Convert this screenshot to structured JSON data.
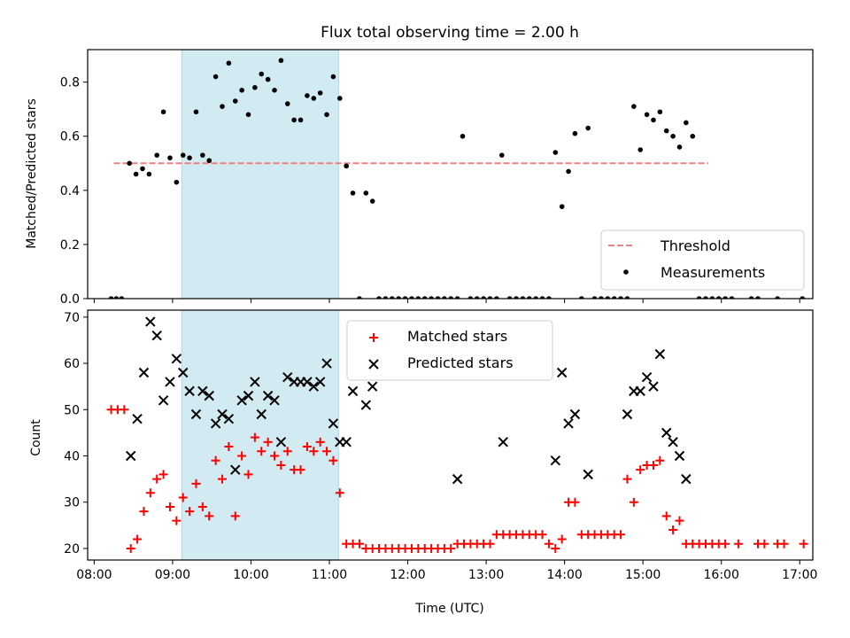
{
  "chart_data": [
    {
      "type": "scatter",
      "title": "Flux total observing time = 2.00 h",
      "xlabel": "",
      "ylabel": "Matched/Predicted stars",
      "x_unit": "time of day (UTC)",
      "xlim": [
        "07:55",
        "17:10"
      ],
      "ylim": [
        0,
        0.92
      ],
      "yticks": [
        "0.0",
        "0.2",
        "0.4",
        "0.6",
        "0.8"
      ],
      "shaded_interval": {
        "x": [
          "09:07",
          "11:07"
        ],
        "color": "#add8e6"
      },
      "legend": {
        "position": "lower right",
        "entries": [
          "Threshold",
          "Measurements"
        ]
      },
      "threshold": {
        "name": "Threshold",
        "y": 0.5,
        "x": [
          "08:15",
          "15:50"
        ],
        "color": "#f08080"
      },
      "series": [
        {
          "name": "Measurements",
          "color": "#000000",
          "points": [
            [
              "08:13",
              0
            ],
            [
              "08:17",
              0
            ],
            [
              "08:21",
              0
            ],
            [
              "08:27",
              0.5
            ],
            [
              "08:32",
              0.46
            ],
            [
              "08:37",
              0.48
            ],
            [
              "08:42",
              0.46
            ],
            [
              "08:48",
              0.53
            ],
            [
              "08:53",
              0.69
            ],
            [
              "08:58",
              0.52
            ],
            [
              "09:03",
              0.43
            ],
            [
              "09:08",
              0.53
            ],
            [
              "09:13",
              0.52
            ],
            [
              "09:18",
              0.69
            ],
            [
              "09:23",
              0.53
            ],
            [
              "09:28",
              0.51
            ],
            [
              "09:33",
              0.82
            ],
            [
              "09:38",
              0.71
            ],
            [
              "09:43",
              0.87
            ],
            [
              "09:48",
              0.73
            ],
            [
              "09:53",
              0.77
            ],
            [
              "09:58",
              0.68
            ],
            [
              "10:03",
              0.78
            ],
            [
              "10:08",
              0.83
            ],
            [
              "10:13",
              0.81
            ],
            [
              "10:18",
              0.77
            ],
            [
              "10:23",
              0.88
            ],
            [
              "10:28",
              0.72
            ],
            [
              "10:33",
              0.66
            ],
            [
              "10:38",
              0.66
            ],
            [
              "10:43",
              0.75
            ],
            [
              "10:48",
              0.74
            ],
            [
              "10:53",
              0.76
            ],
            [
              "10:58",
              0.68
            ],
            [
              "11:03",
              0.82
            ],
            [
              "11:08",
              0.74
            ],
            [
              "11:13",
              0.49
            ],
            [
              "11:18",
              0.39
            ],
            [
              "11:23",
              0
            ],
            [
              "11:28",
              0.39
            ],
            [
              "11:33",
              0.36
            ],
            [
              "11:38",
              0
            ],
            [
              "11:43",
              0
            ],
            [
              "11:48",
              0
            ],
            [
              "11:53",
              0
            ],
            [
              "11:58",
              0
            ],
            [
              "12:03",
              0
            ],
            [
              "12:08",
              0
            ],
            [
              "12:13",
              0
            ],
            [
              "12:18",
              0
            ],
            [
              "12:23",
              0
            ],
            [
              "12:28",
              0
            ],
            [
              "12:33",
              0
            ],
            [
              "12:38",
              0
            ],
            [
              "12:42",
              0.6
            ],
            [
              "12:48",
              0
            ],
            [
              "12:53",
              0
            ],
            [
              "12:58",
              0
            ],
            [
              "13:03",
              0
            ],
            [
              "13:08",
              0
            ],
            [
              "13:12",
              0.53
            ],
            [
              "13:18",
              0
            ],
            [
              "13:23",
              0
            ],
            [
              "13:28",
              0
            ],
            [
              "13:33",
              0
            ],
            [
              "13:38",
              0
            ],
            [
              "13:43",
              0
            ],
            [
              "13:48",
              0
            ],
            [
              "13:53",
              0.54
            ],
            [
              "13:58",
              0.34
            ],
            [
              "14:03",
              0.47
            ],
            [
              "14:08",
              0.61
            ],
            [
              "14:13",
              0
            ],
            [
              "14:18",
              0.63
            ],
            [
              "14:23",
              0
            ],
            [
              "14:28",
              0
            ],
            [
              "14:33",
              0
            ],
            [
              "14:38",
              0
            ],
            [
              "14:43",
              0
            ],
            [
              "14:48",
              0
            ],
            [
              "14:53",
              0.71
            ],
            [
              "14:58",
              0.55
            ],
            [
              "15:03",
              0.68
            ],
            [
              "15:08",
              0.66
            ],
            [
              "15:13",
              0.69
            ],
            [
              "15:18",
              0.62
            ],
            [
              "15:23",
              0.6
            ],
            [
              "15:28",
              0.56
            ],
            [
              "15:33",
              0.65
            ],
            [
              "15:38",
              0.6
            ],
            [
              "15:43",
              0
            ],
            [
              "15:48",
              0
            ],
            [
              "15:53",
              0
            ],
            [
              "15:58",
              0
            ],
            [
              "16:03",
              0
            ],
            [
              "16:08",
              0
            ],
            [
              "16:23",
              0
            ],
            [
              "16:28",
              0
            ],
            [
              "16:43",
              0
            ],
            [
              "17:02",
              0
            ]
          ]
        }
      ]
    },
    {
      "type": "scatter",
      "title": "",
      "xlabel": "Time (UTC)",
      "ylabel": "Count",
      "x_unit": "time of day (UTC)",
      "xlim": [
        "07:55",
        "17:10"
      ],
      "ylim": [
        17.5,
        71.5
      ],
      "yticks": [
        "20",
        "30",
        "40",
        "50",
        "60",
        "70"
      ],
      "xticks": [
        "08:00",
        "09:00",
        "10:00",
        "11:00",
        "12:00",
        "13:00",
        "14:00",
        "15:00",
        "16:00",
        "17:00"
      ],
      "shaded_interval": {
        "x": [
          "09:07",
          "11:07"
        ],
        "color": "#add8e6"
      },
      "legend": {
        "position": "upper center",
        "entries": [
          "Matched stars",
          "Predicted stars"
        ]
      },
      "series": [
        {
          "name": "Matched stars",
          "marker": "+",
          "color": "#ff0000",
          "points": [
            [
              "08:13",
              50
            ],
            [
              "08:18",
              50
            ],
            [
              "08:23",
              50
            ],
            [
              "08:28",
              20
            ],
            [
              "08:33",
              22
            ],
            [
              "08:38",
              28
            ],
            [
              "08:43",
              32
            ],
            [
              "08:48",
              35
            ],
            [
              "08:53",
              36
            ],
            [
              "08:58",
              29
            ],
            [
              "09:03",
              26
            ],
            [
              "09:08",
              31
            ],
            [
              "09:13",
              28
            ],
            [
              "09:18",
              34
            ],
            [
              "09:23",
              29
            ],
            [
              "09:28",
              27
            ],
            [
              "09:33",
              39
            ],
            [
              "09:38",
              35
            ],
            [
              "09:43",
              42
            ],
            [
              "09:48",
              27
            ],
            [
              "09:53",
              40
            ],
            [
              "09:58",
              36
            ],
            [
              "10:03",
              44
            ],
            [
              "10:08",
              41
            ],
            [
              "10:13",
              43
            ],
            [
              "10:18",
              40
            ],
            [
              "10:23",
              38
            ],
            [
              "10:28",
              41
            ],
            [
              "10:33",
              37
            ],
            [
              "10:38",
              37
            ],
            [
              "10:43",
              42
            ],
            [
              "10:48",
              41
            ],
            [
              "10:53",
              43
            ],
            [
              "10:58",
              41
            ],
            [
              "11:03",
              39
            ],
            [
              "11:08",
              32
            ],
            [
              "11:13",
              21
            ],
            [
              "11:18",
              21
            ],
            [
              "11:23",
              21
            ],
            [
              "11:28",
              20
            ],
            [
              "11:33",
              20
            ],
            [
              "11:38",
              20
            ],
            [
              "11:43",
              20
            ],
            [
              "11:48",
              20
            ],
            [
              "11:53",
              20
            ],
            [
              "11:58",
              20
            ],
            [
              "12:03",
              20
            ],
            [
              "12:08",
              20
            ],
            [
              "12:13",
              20
            ],
            [
              "12:18",
              20
            ],
            [
              "12:23",
              20
            ],
            [
              "12:28",
              20
            ],
            [
              "12:33",
              20
            ],
            [
              "12:38",
              21
            ],
            [
              "12:43",
              21
            ],
            [
              "12:48",
              21
            ],
            [
              "12:53",
              21
            ],
            [
              "12:58",
              21
            ],
            [
              "13:03",
              21
            ],
            [
              "13:08",
              23
            ],
            [
              "13:13",
              23
            ],
            [
              "13:18",
              23
            ],
            [
              "13:23",
              23
            ],
            [
              "13:28",
              23
            ],
            [
              "13:33",
              23
            ],
            [
              "13:38",
              23
            ],
            [
              "13:43",
              23
            ],
            [
              "13:48",
              21
            ],
            [
              "13:53",
              20
            ],
            [
              "13:58",
              22
            ],
            [
              "14:03",
              30
            ],
            [
              "14:08",
              30
            ],
            [
              "14:13",
              23
            ],
            [
              "14:18",
              23
            ],
            [
              "14:23",
              23
            ],
            [
              "14:28",
              23
            ],
            [
              "14:33",
              23
            ],
            [
              "14:38",
              23
            ],
            [
              "14:43",
              23
            ],
            [
              "14:48",
              35
            ],
            [
              "14:53",
              30
            ],
            [
              "14:58",
              37
            ],
            [
              "15:03",
              38
            ],
            [
              "15:08",
              38
            ],
            [
              "15:13",
              39
            ],
            [
              "15:18",
              27
            ],
            [
              "15:23",
              24
            ],
            [
              "15:28",
              26
            ],
            [
              "15:33",
              21
            ],
            [
              "15:38",
              21
            ],
            [
              "15:43",
              21
            ],
            [
              "15:48",
              21
            ],
            [
              "15:53",
              21
            ],
            [
              "15:58",
              21
            ],
            [
              "16:03",
              21
            ],
            [
              "16:13",
              21
            ],
            [
              "16:28",
              21
            ],
            [
              "16:33",
              21
            ],
            [
              "16:43",
              21
            ],
            [
              "16:48",
              21
            ],
            [
              "17:03",
              21
            ]
          ]
        },
        {
          "name": "Predicted stars",
          "marker": "x",
          "color": "#000000",
          "points": [
            [
              "08:28",
              40
            ],
            [
              "08:33",
              48
            ],
            [
              "08:38",
              58
            ],
            [
              "08:43",
              69
            ],
            [
              "08:48",
              66
            ],
            [
              "08:53",
              52
            ],
            [
              "08:58",
              56
            ],
            [
              "09:03",
              61
            ],
            [
              "09:08",
              58
            ],
            [
              "09:13",
              54
            ],
            [
              "09:18",
              49
            ],
            [
              "09:23",
              54
            ],
            [
              "09:28",
              53
            ],
            [
              "09:33",
              47
            ],
            [
              "09:38",
              49
            ],
            [
              "09:43",
              48
            ],
            [
              "09:48",
              37
            ],
            [
              "09:53",
              52
            ],
            [
              "09:58",
              53
            ],
            [
              "10:03",
              56
            ],
            [
              "10:08",
              49
            ],
            [
              "10:13",
              53
            ],
            [
              "10:18",
              52
            ],
            [
              "10:23",
              43
            ],
            [
              "10:28",
              57
            ],
            [
              "10:33",
              56
            ],
            [
              "10:38",
              56
            ],
            [
              "10:43",
              56
            ],
            [
              "10:48",
              55
            ],
            [
              "10:53",
              56
            ],
            [
              "10:58",
              60
            ],
            [
              "11:03",
              47
            ],
            [
              "11:08",
              43
            ],
            [
              "11:13",
              43
            ],
            [
              "11:18",
              54
            ],
            [
              "11:28",
              51
            ],
            [
              "11:33",
              55
            ],
            [
              "12:38",
              35
            ],
            [
              "13:13",
              43
            ],
            [
              "13:53",
              39
            ],
            [
              "13:58",
              58
            ],
            [
              "14:03",
              47
            ],
            [
              "14:08",
              49
            ],
            [
              "14:18",
              36
            ],
            [
              "14:48",
              49
            ],
            [
              "14:53",
              54
            ],
            [
              "14:58",
              54
            ],
            [
              "15:03",
              57
            ],
            [
              "15:08",
              55
            ],
            [
              "15:13",
              62
            ],
            [
              "15:18",
              45
            ],
            [
              "15:23",
              43
            ],
            [
              "15:28",
              40
            ],
            [
              "15:33",
              35
            ]
          ]
        }
      ]
    }
  ]
}
